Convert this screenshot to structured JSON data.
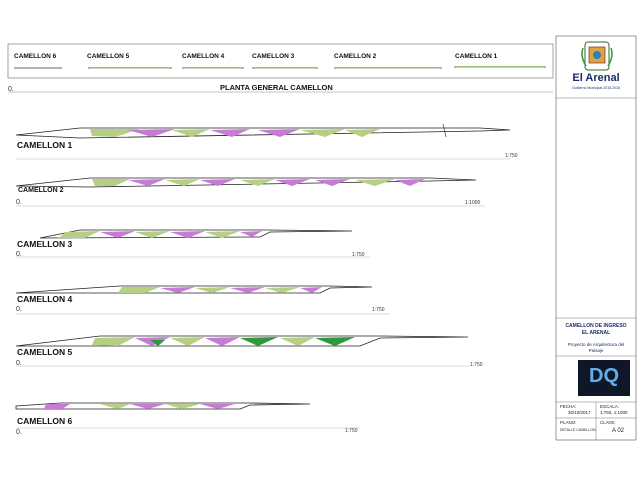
{
  "sheet": {
    "title": "PLANTA GENERAL CAMELLON",
    "zero": "0."
  },
  "key_plan": {
    "labels": [
      "CAMELLON 6",
      "CAMELLON 5",
      "CAMELLON 4",
      "CAMELLON 3",
      "CAMELLON 2",
      "CAMELLON 1"
    ]
  },
  "camellones": [
    {
      "label": "CAMELLON 1",
      "scale": "1:750"
    },
    {
      "label": "CAMELLON 2",
      "scale": "1:1000"
    },
    {
      "label": "CAMELLON 3",
      "scale": "1:750"
    },
    {
      "label": "CAMELLON 4",
      "scale": "1:750"
    },
    {
      "label": "CAMELLON 5",
      "scale": "1:750"
    },
    {
      "label": "CAMELLON 6",
      "scale": "1:750"
    }
  ],
  "title_block": {
    "logo_text": "El Arenal",
    "logo_subtitle": "Gobierno Municipal 2015-2018",
    "project_title_1": "CAMELLON DE INGRESO",
    "project_title_2": "EL ARENAL",
    "project_subtitle_1": "Proyecto de Arquitectura del",
    "project_subtitle_2": "Paisaje",
    "dq_logo": "DQ",
    "fecha_label": "FECHA:",
    "fecha_value": "30/10/2017",
    "escala_label": "ESCALA:",
    "escala_value": "1:750, 1:1000",
    "plano_label": "PLANO:",
    "clave_label": "CLAVE:",
    "plano_value": "DETALLE CAMELLON",
    "clave_value": "A 02"
  },
  "colors": {
    "purple": "#c77bd6",
    "light_green": "#b5cf83",
    "dark_green": "#2f9a3a",
    "navy": "#1b2d66"
  }
}
